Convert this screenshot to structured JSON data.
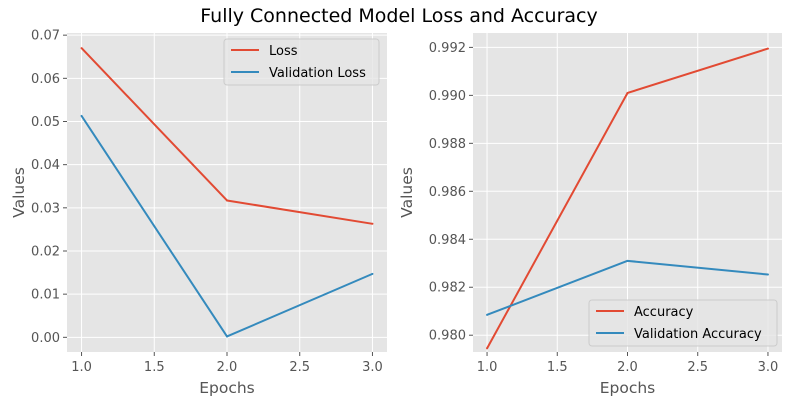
{
  "figure": {
    "title": "Fully Connected Model Loss and Accuracy"
  },
  "colors": {
    "series_1": "#E24A33",
    "series_2": "#348ABD",
    "plot_background": "#E5E5E5",
    "grid": "#FFFFFF",
    "tick_text": "#555555"
  },
  "chart_data": [
    {
      "type": "line",
      "xlabel": "Epochs",
      "ylabel": "Values",
      "xlim": [
        0.9,
        3.1
      ],
      "ylim": [
        -0.0034,
        0.0705
      ],
      "xticks": [
        1.0,
        1.5,
        2.0,
        2.5,
        3.0
      ],
      "xtick_labels": [
        "1.0",
        "1.5",
        "2.0",
        "2.5",
        "3.0"
      ],
      "yticks": [
        0.0,
        0.01,
        0.02,
        0.03,
        0.04,
        0.05,
        0.06,
        0.07
      ],
      "ytick_labels": [
        "0.00",
        "0.01",
        "0.02",
        "0.03",
        "0.04",
        "0.05",
        "0.06",
        "0.07"
      ],
      "grid": true,
      "legend_position": "top-right",
      "x": [
        1.0,
        2.0,
        3.0
      ],
      "series": [
        {
          "name": "Loss",
          "values": [
            0.067,
            0.0317,
            0.0263
          ]
        },
        {
          "name": "Validation Loss",
          "values": [
            0.0513,
            0.0002,
            0.0147
          ]
        }
      ]
    },
    {
      "type": "line",
      "xlabel": "Epochs",
      "ylabel": "Values",
      "xlim": [
        0.9,
        3.1
      ],
      "ylim": [
        0.9793,
        0.9926
      ],
      "xticks": [
        1.0,
        1.5,
        2.0,
        2.5,
        3.0
      ],
      "xtick_labels": [
        "1.0",
        "1.5",
        "2.0",
        "2.5",
        "3.0"
      ],
      "yticks": [
        0.98,
        0.982,
        0.984,
        0.986,
        0.988,
        0.99,
        0.992
      ],
      "ytick_labels": [
        "0.980",
        "0.982",
        "0.984",
        "0.986",
        "0.988",
        "0.990",
        "0.992"
      ],
      "grid": true,
      "legend_position": "bottom-right",
      "x": [
        1.0,
        2.0,
        3.0
      ],
      "series": [
        {
          "name": "Accuracy",
          "values": [
            0.97945,
            0.9901,
            0.99195
          ]
        },
        {
          "name": "Validation Accuracy",
          "values": [
            0.98085,
            0.9831,
            0.98253
          ]
        }
      ]
    }
  ]
}
